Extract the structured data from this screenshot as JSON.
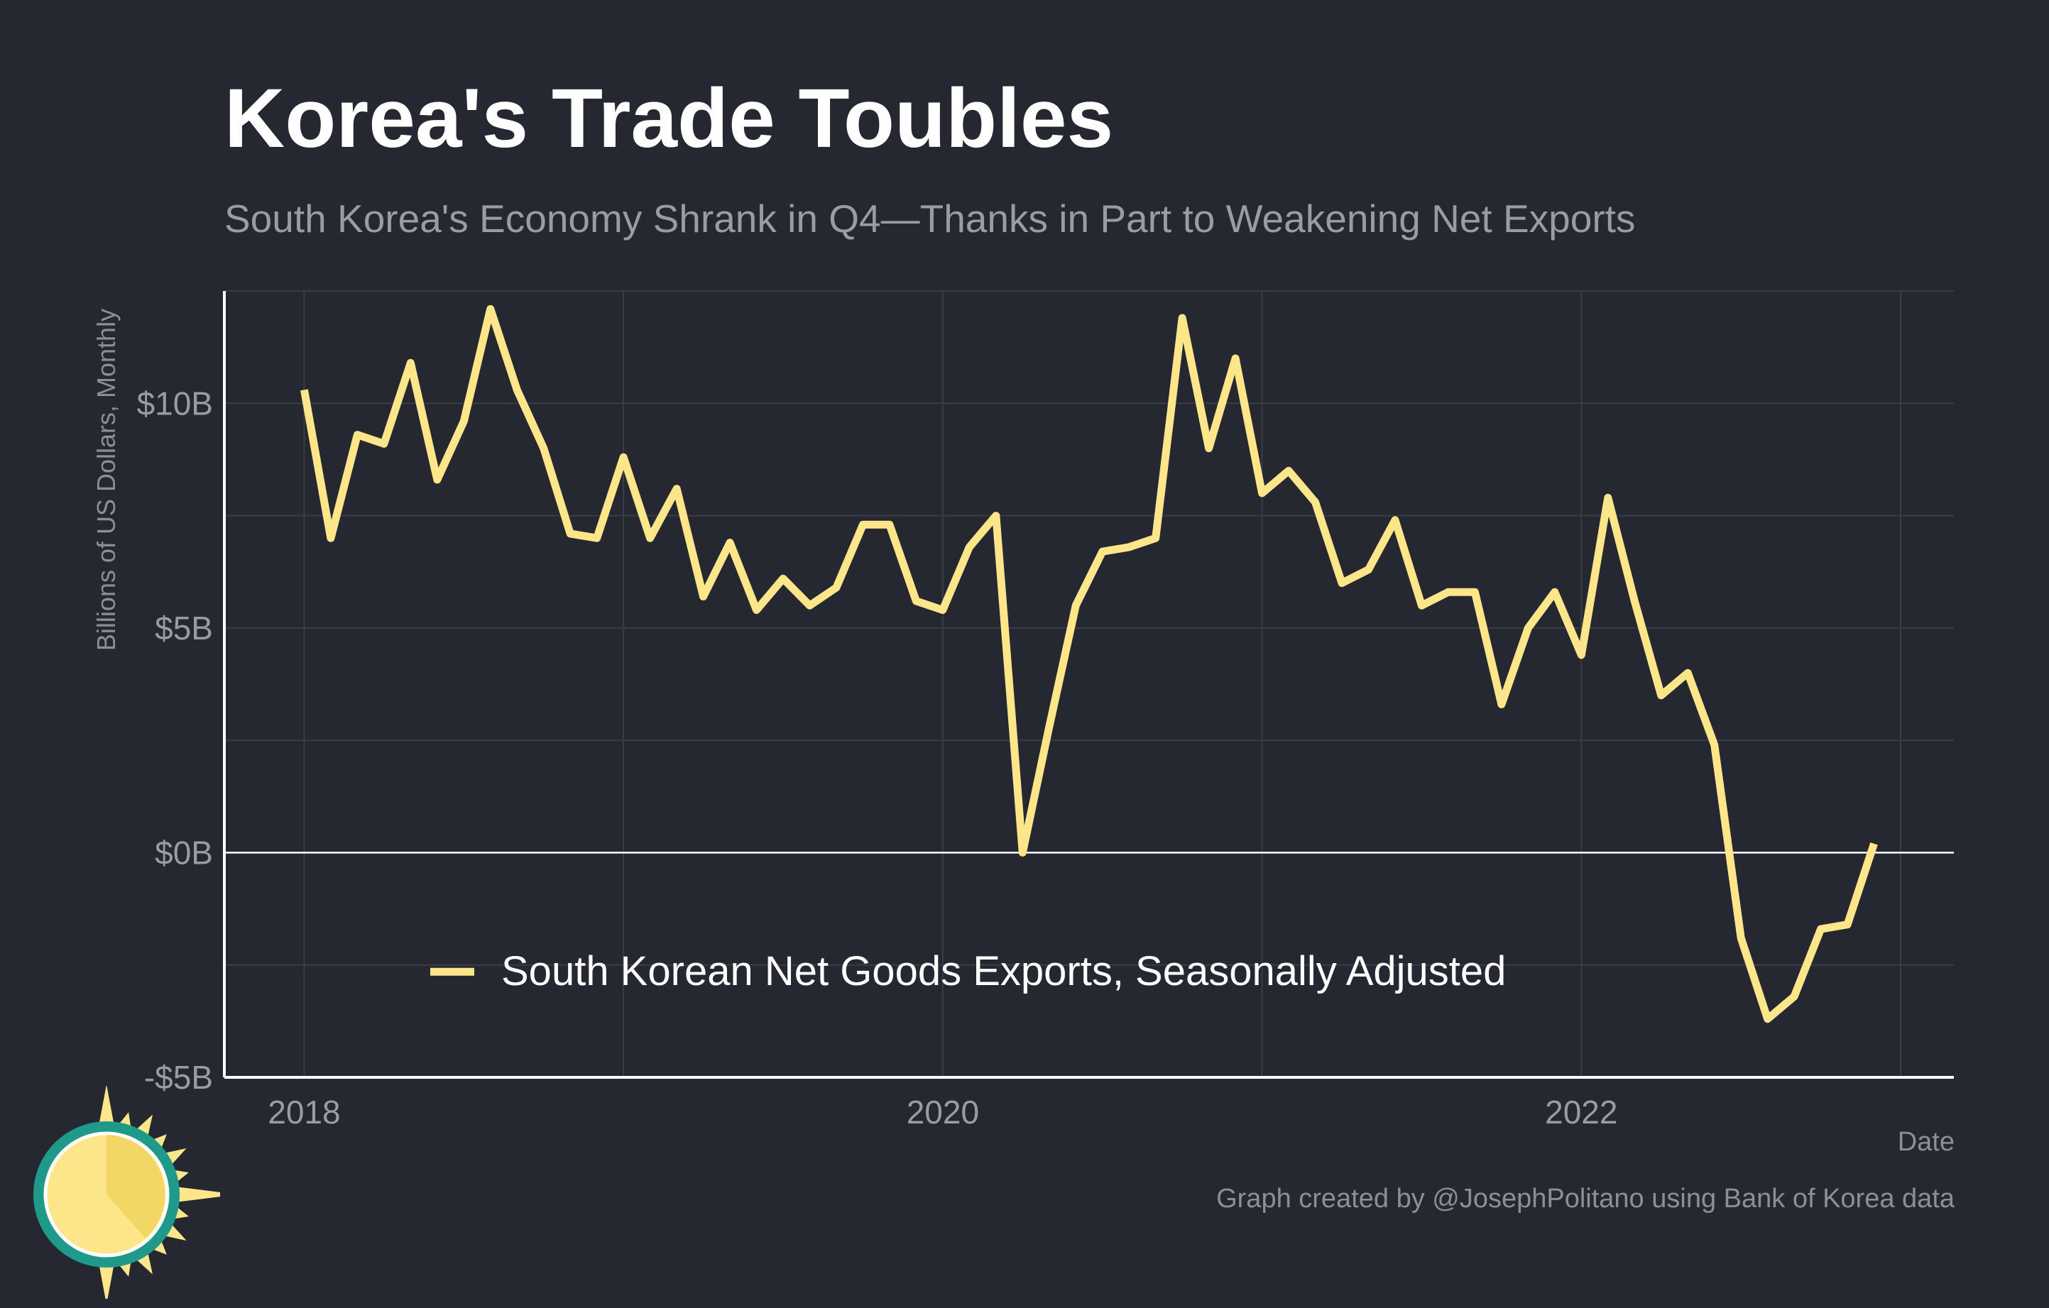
{
  "title": "Korea's Trade Toubles",
  "subtitle": "South Korea's Economy Shrank in Q4—Thanks in Part to Weakening Net Exports",
  "caption": "Graph created by @JosephPolitano using Bank of Korea data",
  "colors": {
    "background": "#252830",
    "line": "#fde68a",
    "grid": "#3a3d45",
    "zero_line": "#ffffff",
    "axis": "#ffffff",
    "logo_ring": "#1f9a8a",
    "logo_sun": "#fde68a"
  },
  "logo": {
    "icon": "sun-clock-icon"
  },
  "chart_data": {
    "type": "line",
    "title": "Korea's Trade Toubles",
    "xlabel": "Date",
    "ylabel": "Billions of US Dollars, Monthly",
    "x_ticks": [
      2018,
      2020,
      2022
    ],
    "x_tick_labels": [
      "2018",
      "2020",
      "2022"
    ],
    "y_ticks": [
      -5,
      0,
      5,
      10
    ],
    "y_tick_labels": [
      "-$5B",
      "$0B",
      "$5B",
      "$10B"
    ],
    "xlim": [
      "2017-10",
      "2023-03"
    ],
    "ylim": [
      -5,
      12.5
    ],
    "grid": true,
    "legend_position": "bottom-center",
    "series": [
      {
        "name": "South Korean Net Goods Exports, Seasonally Adjusted",
        "color": "#fde68a",
        "dates": [
          "2018-01",
          "2018-02",
          "2018-03",
          "2018-04",
          "2018-05",
          "2018-06",
          "2018-07",
          "2018-08",
          "2018-09",
          "2018-10",
          "2018-11",
          "2018-12",
          "2019-01",
          "2019-02",
          "2019-03",
          "2019-04",
          "2019-05",
          "2019-06",
          "2019-07",
          "2019-08",
          "2019-09",
          "2019-10",
          "2019-11",
          "2019-12",
          "2020-01",
          "2020-02",
          "2020-03",
          "2020-04",
          "2020-05",
          "2020-06",
          "2020-07",
          "2020-08",
          "2020-09",
          "2020-10",
          "2020-11",
          "2020-12",
          "2021-01",
          "2021-02",
          "2021-03",
          "2021-04",
          "2021-05",
          "2021-06",
          "2021-07",
          "2021-08",
          "2021-09",
          "2021-10",
          "2021-11",
          "2021-12",
          "2022-01",
          "2022-02",
          "2022-03",
          "2022-04",
          "2022-05",
          "2022-06",
          "2022-07",
          "2022-08",
          "2022-09",
          "2022-10",
          "2022-11",
          "2022-12"
        ],
        "values": [
          10.3,
          7.0,
          9.3,
          9.1,
          10.9,
          8.3,
          9.6,
          12.1,
          10.3,
          9.0,
          7.1,
          7.0,
          8.8,
          7.0,
          8.1,
          5.7,
          6.9,
          5.4,
          6.1,
          5.5,
          5.9,
          7.3,
          7.3,
          5.6,
          5.4,
          6.8,
          7.5,
          0.0,
          2.8,
          5.5,
          6.7,
          6.8,
          7.0,
          11.9,
          9.0,
          11.0,
          8.0,
          8.5,
          7.8,
          6.0,
          6.3,
          7.4,
          5.5,
          5.8,
          5.8,
          3.3,
          5.0,
          5.8,
          4.4,
          7.9,
          5.6,
          3.5,
          4.0,
          2.4,
          -1.9,
          -3.7,
          -3.2,
          -1.7,
          -1.6,
          0.2
        ]
      }
    ]
  }
}
